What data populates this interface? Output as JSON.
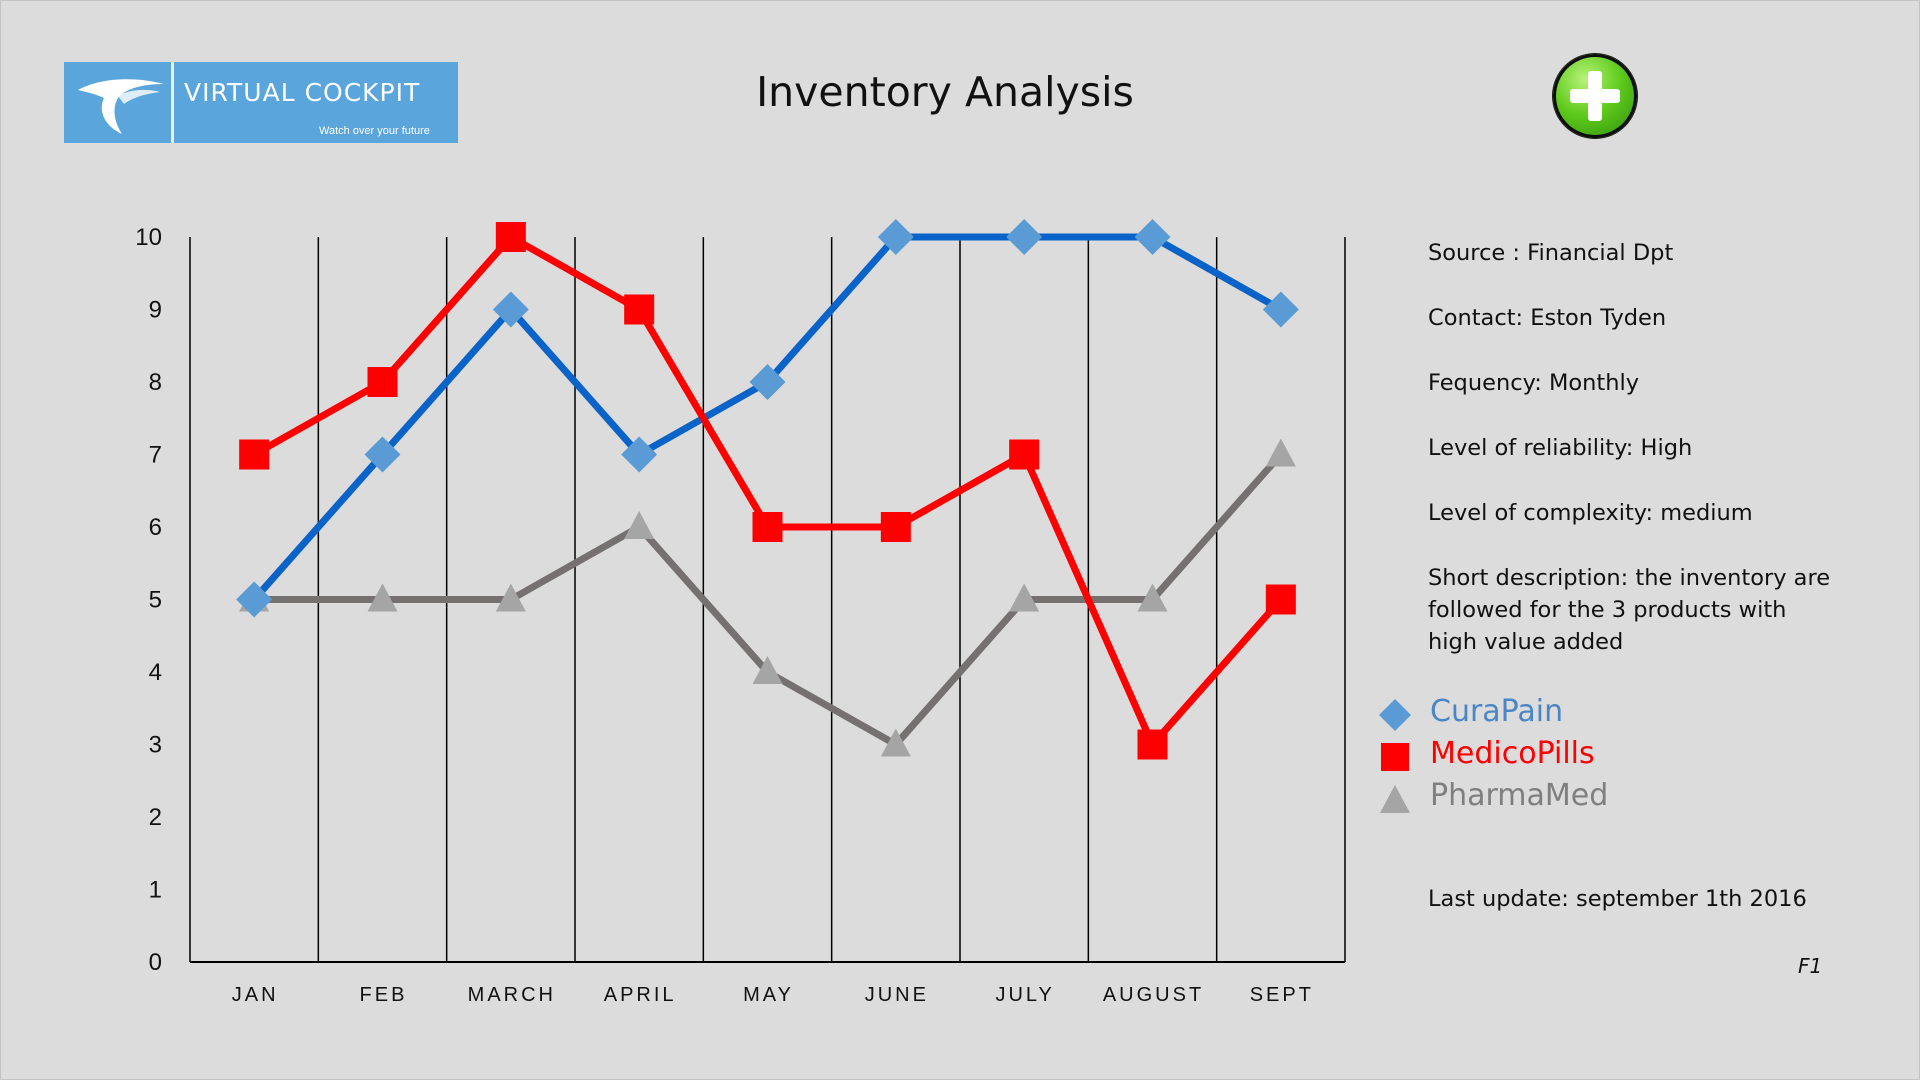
{
  "header": {
    "title": "Inventory Analysis",
    "logo": {
      "name": "VIRTUAL COCKPIT",
      "tagline": "Watch over your future",
      "background": "#5aa6dc"
    },
    "add_button_icon": "plus-icon"
  },
  "info": {
    "source": "Source : Financial Dpt",
    "contact": "Contact: Eston Tyden",
    "frequency": "Fequency: Monthly",
    "reliability": "Level of reliability:  High",
    "complexity": "Level of complexity: medium",
    "description": "Short description: the inventory are followed for the 3 products with high value added",
    "last_update": "Last update:  september 1th 2016",
    "slide_id": "F1"
  },
  "chart_data": {
    "type": "line",
    "categories": [
      "JAN",
      "FEB",
      "MARCH",
      "APRIL",
      "MAY",
      "JUNE",
      "JULY",
      "AUGUST",
      "SEPT"
    ],
    "ylim": [
      0,
      10
    ],
    "yticks": [
      0,
      1,
      2,
      3,
      4,
      5,
      6,
      7,
      8,
      9,
      10
    ],
    "grid": "vertical lines",
    "legend": "right",
    "series": [
      {
        "name": "CuraPain",
        "values": [
          5,
          7,
          9,
          7,
          8,
          10,
          10,
          10,
          9
        ],
        "color": "#0a63c8",
        "marker_color": "#5b9bd5",
        "marker": "diamond",
        "label_color": "#4a86c6"
      },
      {
        "name": "MedicoPills",
        "values": [
          7,
          8,
          10,
          9,
          6,
          6,
          7,
          3,
          5
        ],
        "color": "#ff0000",
        "marker_color": "#ff0000",
        "marker": "square",
        "label_color": "#ff0000"
      },
      {
        "name": "PharmaMed",
        "values": [
          5,
          5,
          5,
          6,
          4,
          3,
          5,
          5,
          7
        ],
        "color": "#767171",
        "marker_color": "#a5a5a5",
        "marker": "triangle",
        "label_color": "#7f7f7f"
      }
    ]
  }
}
